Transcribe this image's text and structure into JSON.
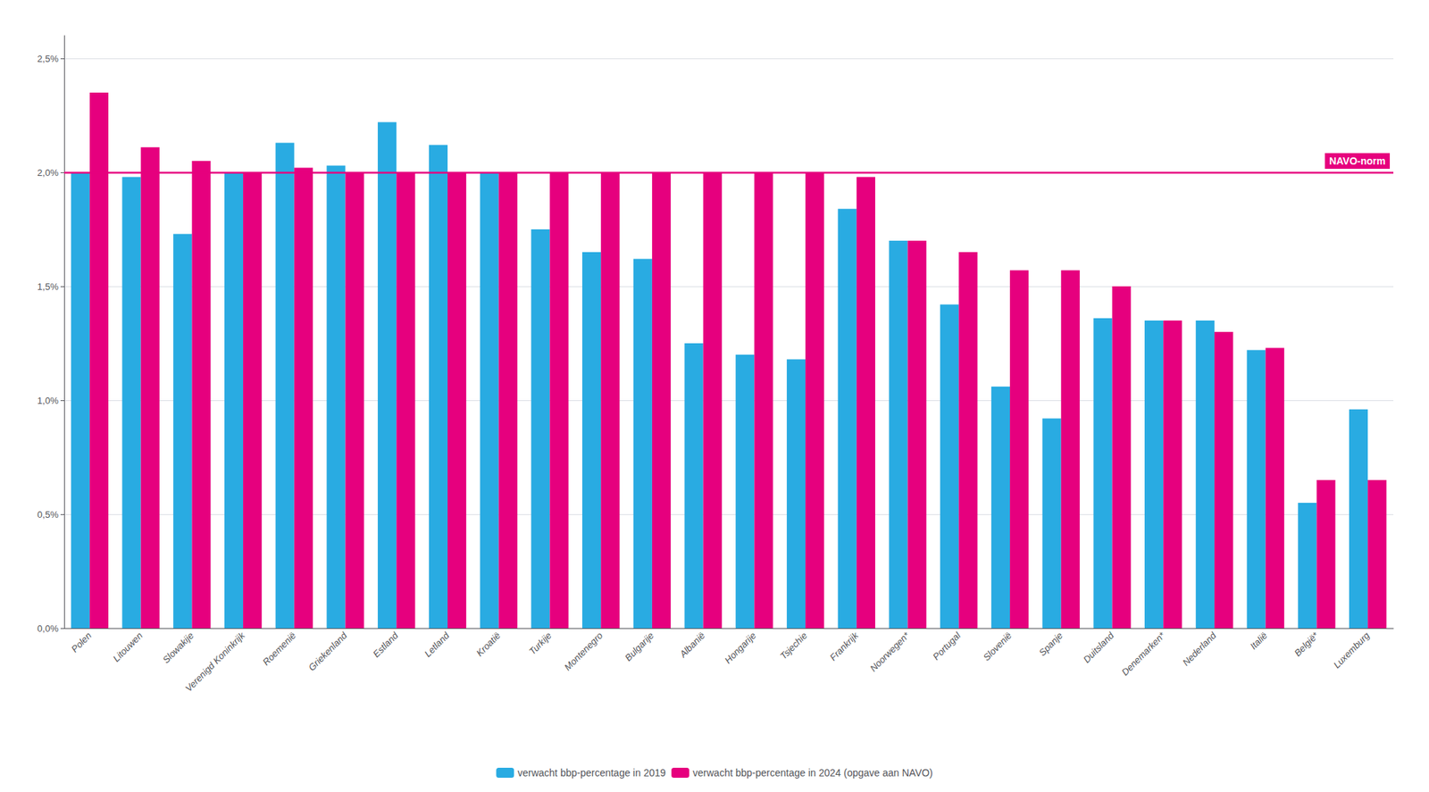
{
  "chart_data": {
    "type": "bar",
    "categories": [
      "Polen",
      "Litouwen",
      "Slowakije",
      "Verenigd Koninkrijk",
      "Roemenië",
      "Griekenland",
      "Estland",
      "Letland",
      "Kroatië",
      "Turkije",
      "Montenegro",
      "Bulgarije",
      "Albanië",
      "Hongarije",
      "Tsjechie",
      "Frankrijk",
      "Noorwegen*",
      "Portugal",
      "Slovenië",
      "Spanje",
      "Duitsland",
      "Denemarken*",
      "Nederland",
      "Italië",
      "België*",
      "Luxemburg"
    ],
    "series": [
      {
        "name": "verwacht bbp-percentage in 2019",
        "color": "#29ABE2",
        "values": [
          0.02,
          0.0198,
          0.0173,
          0.02,
          0.0213,
          0.0203,
          0.0222,
          0.0212,
          0.02,
          0.0175,
          0.0165,
          0.0162,
          0.0125,
          0.012,
          0.0118,
          0.0184,
          0.017,
          0.0142,
          0.0106,
          0.0092,
          0.0136,
          0.0135,
          0.0135,
          0.0122,
          0.0055,
          0.0096
        ]
      },
      {
        "name": "verwacht bbp-percentage in 2024 (opgave aan NAVO)",
        "color": "#E6007E",
        "values": [
          0.0235,
          0.0211,
          0.0205,
          0.02,
          0.0202,
          0.02,
          0.02,
          0.02,
          0.02,
          0.02,
          0.02,
          0.02,
          0.02,
          0.02,
          0.02,
          0.0198,
          0.017,
          0.0165,
          0.0157,
          0.0157,
          0.015,
          0.0135,
          0.013,
          0.0123,
          0.0065,
          0.0065
        ]
      }
    ],
    "annotations": [
      {
        "text": "NAVO-norm",
        "y": 0.02,
        "color": "#E6007E"
      }
    ],
    "ylim": [
      0.0,
      0.026
    ],
    "yticks": [
      {
        "value": 0.0,
        "label": "0,0%"
      },
      {
        "value": 0.005,
        "label": "0,5%"
      },
      {
        "value": 0.01,
        "label": "1,0%"
      },
      {
        "value": 0.015,
        "label": "1,5%"
      },
      {
        "value": 0.02,
        "label": "2,0%"
      },
      {
        "value": 0.025,
        "label": "2,5%"
      }
    ],
    "grid": true,
    "legend": "bottom"
  }
}
